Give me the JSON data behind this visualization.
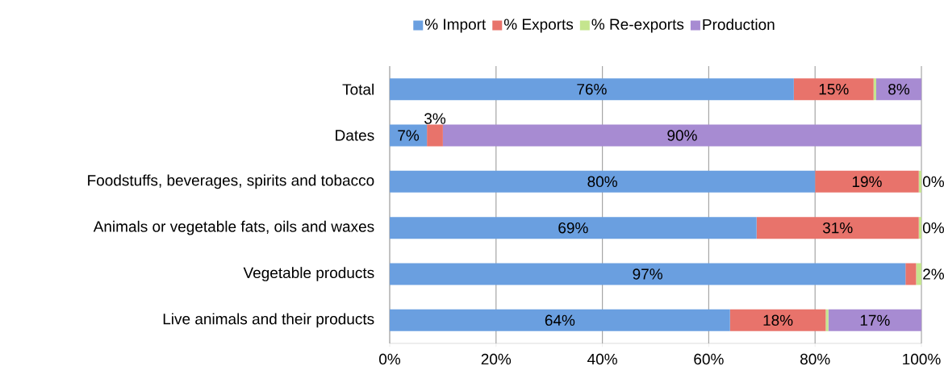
{
  "chart_data": {
    "type": "bar",
    "orientation": "horizontal",
    "stacked": true,
    "grid": "x",
    "legend": "top",
    "categories": [
      "Total",
      "Dates",
      "Foodstuffs, beverages, spirits and tobacco",
      "Animals or vegetable fats, oils and waxes",
      "Vegetable products",
      "Live animals and their products"
    ],
    "xlim": [
      0,
      100
    ],
    "xticks": [
      {
        "value": 0,
        "label": "0%"
      },
      {
        "value": 20,
        "label": "20%"
      },
      {
        "value": 40,
        "label": "40%"
      },
      {
        "value": 60,
        "label": "60%"
      },
      {
        "value": 80,
        "label": "80%"
      },
      {
        "value": 100,
        "label": "100%"
      }
    ],
    "series": [
      {
        "name": "% Import",
        "color": "#6a9fe0",
        "values": [
          76,
          7,
          80,
          69,
          97,
          64
        ],
        "value_labels": [
          "76%",
          "7%",
          "80%",
          "69%",
          "97%",
          "64%"
        ]
      },
      {
        "name": "% Exports",
        "color": "#e8736b",
        "values": [
          15,
          3,
          19.5,
          30.5,
          2,
          18
        ],
        "value_labels": [
          "15%",
          "3%",
          "19%",
          "31%",
          "2%",
          "18%"
        ]
      },
      {
        "name": "% Re-exports",
        "color": "#c5e58e",
        "values": [
          0.5,
          0,
          0.5,
          0.5,
          1,
          0.5
        ],
        "value_labels": [
          null,
          null,
          "0%",
          "0%",
          null,
          null
        ]
      },
      {
        "name": "Production",
        "color": "#a78bd2",
        "values": [
          8.5,
          90,
          0,
          0,
          0,
          17.5
        ],
        "value_labels": [
          "8%",
          "90%",
          null,
          null,
          null,
          "17%"
        ]
      }
    ]
  }
}
